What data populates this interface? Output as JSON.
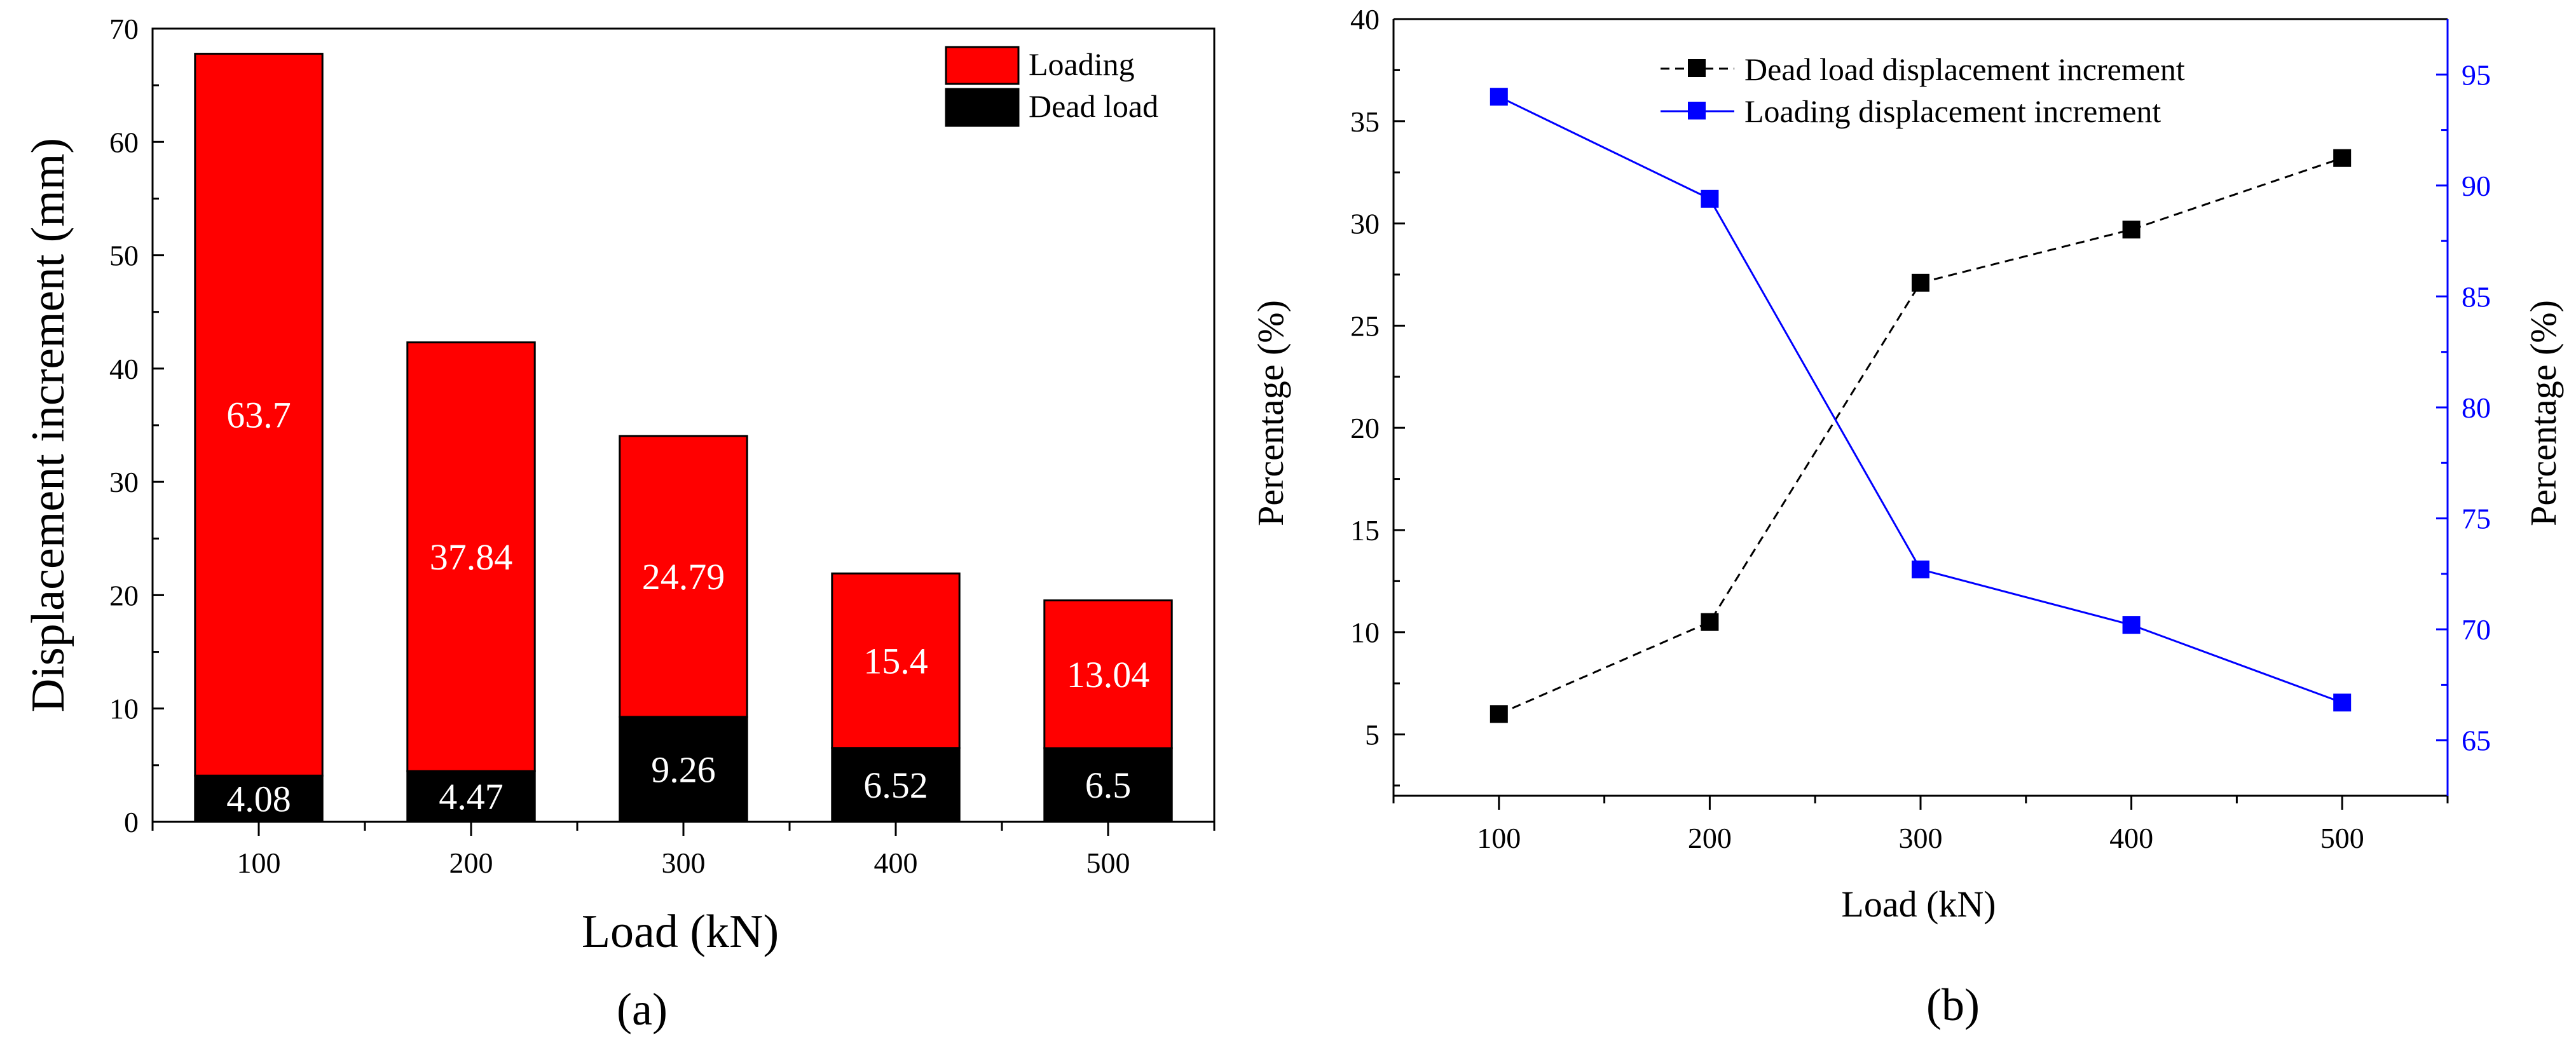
{
  "chart_data": [
    {
      "type": "bar",
      "stacked": true,
      "panel_label": "(a)",
      "xlabel": "Load (kN)",
      "ylabel": "Displacement increment (mm)",
      "ylim": [
        0,
        70
      ],
      "yticks": [
        "0",
        "10",
        "20",
        "30",
        "40",
        "50",
        "60",
        "70"
      ],
      "categories": [
        "100",
        "200",
        "300",
        "400",
        "500"
      ],
      "series": [
        {
          "name": "Dead load",
          "color": "#000000",
          "values": [
            4.08,
            4.47,
            9.26,
            6.52,
            6.5
          ],
          "labels": [
            "4.08",
            "4.47",
            "9.26",
            "6.52",
            "6.5"
          ]
        },
        {
          "name": "Loading",
          "color": "#ff0000",
          "values": [
            63.7,
            37.84,
            24.79,
            15.4,
            13.04
          ],
          "labels": [
            "63.7",
            "37.84",
            "24.79",
            "15.4",
            "13.04"
          ]
        }
      ],
      "legend": {
        "position": "top-right",
        "order": [
          "Loading",
          "Dead load"
        ]
      }
    },
    {
      "type": "line",
      "panel_label": "(b)",
      "xlabel": "Load (kN)",
      "x": [
        100,
        200,
        300,
        400,
        500
      ],
      "xticks": [
        "100",
        "200",
        "300",
        "400",
        "500"
      ],
      "xlim": [
        50,
        550
      ],
      "y_left": {
        "label": "Percentage (%)",
        "range": [
          2,
          40
        ],
        "ticks": [
          "5",
          "10",
          "15",
          "20",
          "25",
          "30",
          "35",
          "40"
        ],
        "color": "#000000"
      },
      "y_right": {
        "label": "Percentage (%)",
        "range": [
          62.5,
          97.5
        ],
        "ticks": [
          "65",
          "70",
          "75",
          "80",
          "85",
          "90",
          "95"
        ],
        "color": "#0000ff"
      },
      "series": [
        {
          "name": "Dead load displacement increment",
          "axis": "left",
          "color": "#000000",
          "dashed": true,
          "marker": "square",
          "values": [
            6.0,
            10.5,
            27.1,
            29.7,
            33.2
          ]
        },
        {
          "name": "Loading displacement increment",
          "axis": "right",
          "color": "#0000ff",
          "dashed": false,
          "marker": "square",
          "values": [
            94.0,
            89.4,
            72.7,
            70.2,
            66.7
          ]
        }
      ],
      "legend": {
        "position": "top-center"
      }
    }
  ]
}
